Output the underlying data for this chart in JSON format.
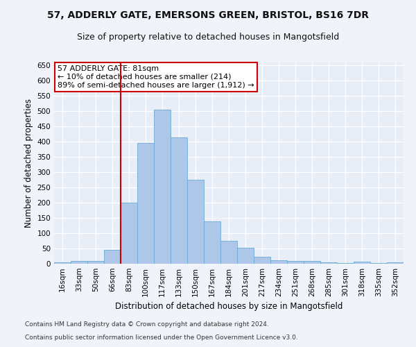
{
  "title1": "57, ADDERLY GATE, EMERSONS GREEN, BRISTOL, BS16 7DR",
  "title2": "Size of property relative to detached houses in Mangotsfield",
  "xlabel": "Distribution of detached houses by size in Mangotsfield",
  "ylabel": "Number of detached properties",
  "categories": [
    "16sqm",
    "33sqm",
    "50sqm",
    "66sqm",
    "83sqm",
    "100sqm",
    "117sqm",
    "133sqm",
    "150sqm",
    "167sqm",
    "184sqm",
    "201sqm",
    "217sqm",
    "234sqm",
    "251sqm",
    "268sqm",
    "285sqm",
    "301sqm",
    "318sqm",
    "335sqm",
    "352sqm"
  ],
  "values": [
    5,
    10,
    10,
    45,
    200,
    395,
    505,
    415,
    275,
    138,
    75,
    52,
    22,
    12,
    8,
    8,
    5,
    2,
    6,
    2,
    5
  ],
  "bar_color": "#aec6e8",
  "bar_edge_color": "#6aaad4",
  "bg_color": "#e8eef8",
  "grid_color": "#ffffff",
  "vline_color": "#cc0000",
  "annotation_text": "57 ADDERLY GATE: 81sqm\n← 10% of detached houses are smaller (214)\n89% of semi-detached houses are larger (1,912) →",
  "annotation_box_color": "#ffffff",
  "annotation_box_edge": "#cc0000",
  "ylim": [
    0,
    660
  ],
  "yticks": [
    0,
    50,
    100,
    150,
    200,
    250,
    300,
    350,
    400,
    450,
    500,
    550,
    600,
    650
  ],
  "footer1": "Contains HM Land Registry data © Crown copyright and database right 2024.",
  "footer2": "Contains public sector information licensed under the Open Government Licence v3.0.",
  "fig_bg": "#f0f4fa"
}
